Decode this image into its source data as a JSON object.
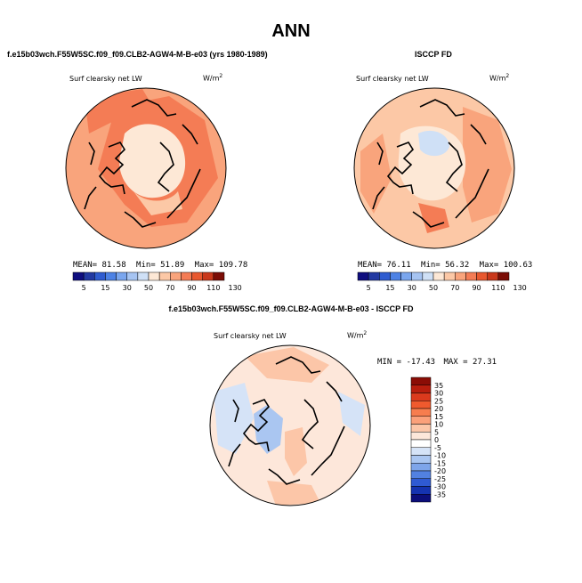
{
  "page": {
    "title": "ANN",
    "left_header": "f.e15b03wch.F55W5SC.f09_f09.CLB2-AGW4-M-B-e03 (yrs 1980-1989)",
    "right_header": "ISCCP FD",
    "diff_header": "f.e15b03wch.F55W5SC.f09_f09.CLB2-AGW4-M-B-e03 - ISCCP FD"
  },
  "chart_data": [
    {
      "type": "polar-map",
      "panel": "model",
      "title": "Surf clearsky net LW",
      "units": "W/m",
      "units_sup": "2",
      "stats": {
        "mean_label": "MEAN=",
        "mean": "81.58",
        "min_label": "Min=",
        "min": "51.89",
        "max_label": "Max=",
        "max": "109.78"
      },
      "colorbar": {
        "orientation": "horizontal",
        "tick_labels": [
          "5",
          "15",
          "30",
          "50",
          "70",
          "90",
          "110",
          "130"
        ],
        "colors": [
          "#0f0e7f",
          "#2239a2",
          "#2f5cd0",
          "#4d82e5",
          "#7aa6ee",
          "#a6c4f2",
          "#cfe0f6",
          "#fde8d6",
          "#fcc8a6",
          "#f9a47c",
          "#f47c55",
          "#e8582f",
          "#c9381b",
          "#7b0d06"
        ]
      },
      "field_colors": {
        "background": "#f9a47c",
        "interior": "#fde8d6",
        "high": "#f47c55"
      }
    },
    {
      "type": "polar-map",
      "panel": "obs",
      "title": "Surf clearsky net LW",
      "units": "W/m",
      "units_sup": "2",
      "stats": {
        "mean_label": "MEAN=",
        "mean": "76.11",
        "min_label": "Min=",
        "min": "56.32",
        "max_label": "Max=",
        "max": "100.63"
      },
      "colorbar": {
        "orientation": "horizontal",
        "tick_labels": [
          "5",
          "15",
          "30",
          "50",
          "70",
          "90",
          "110",
          "130"
        ],
        "colors": [
          "#0f0e7f",
          "#2239a2",
          "#2f5cd0",
          "#4d82e5",
          "#7aa6ee",
          "#a6c4f2",
          "#cfe0f6",
          "#fde8d6",
          "#fcc8a6",
          "#f9a47c",
          "#f47c55",
          "#e8582f",
          "#c9381b",
          "#7b0d06"
        ]
      },
      "field_colors": {
        "background": "#fcc8a6",
        "interior": "#fde8d6",
        "high": "#f47c55",
        "low": "#cfe0f6"
      }
    },
    {
      "type": "polar-map",
      "panel": "difference",
      "title": "Surf clearsky net LW",
      "units": "W/m",
      "units_sup": "2",
      "stats": {
        "min_label": "MIN =",
        "min": "-17.43",
        "max_label": "MAX =",
        "max": "27.31"
      },
      "colorbar": {
        "orientation": "vertical",
        "tick_labels": [
          "35",
          "30",
          "25",
          "20",
          "15",
          "10",
          "5",
          "0",
          "-5",
          "-10",
          "-15",
          "-20",
          "-25",
          "-30",
          "-35"
        ],
        "colors": [
          "#8b0d06",
          "#b81e0e",
          "#db3a1d",
          "#ef5a2e",
          "#f77d4e",
          "#fba07a",
          "#fcc6a8",
          "#fde7da",
          "#ffffff",
          "#d5e3f7",
          "#aac6f1",
          "#7ea5ea",
          "#5281e1",
          "#2f5ad3",
          "#1533b0",
          "#0c0e7a"
        ]
      },
      "field_colors": {
        "background": "#fde7da",
        "warm": "#fcc6a8",
        "cool": "#d5e3f7",
        "cool2": "#aac6f1"
      }
    }
  ]
}
